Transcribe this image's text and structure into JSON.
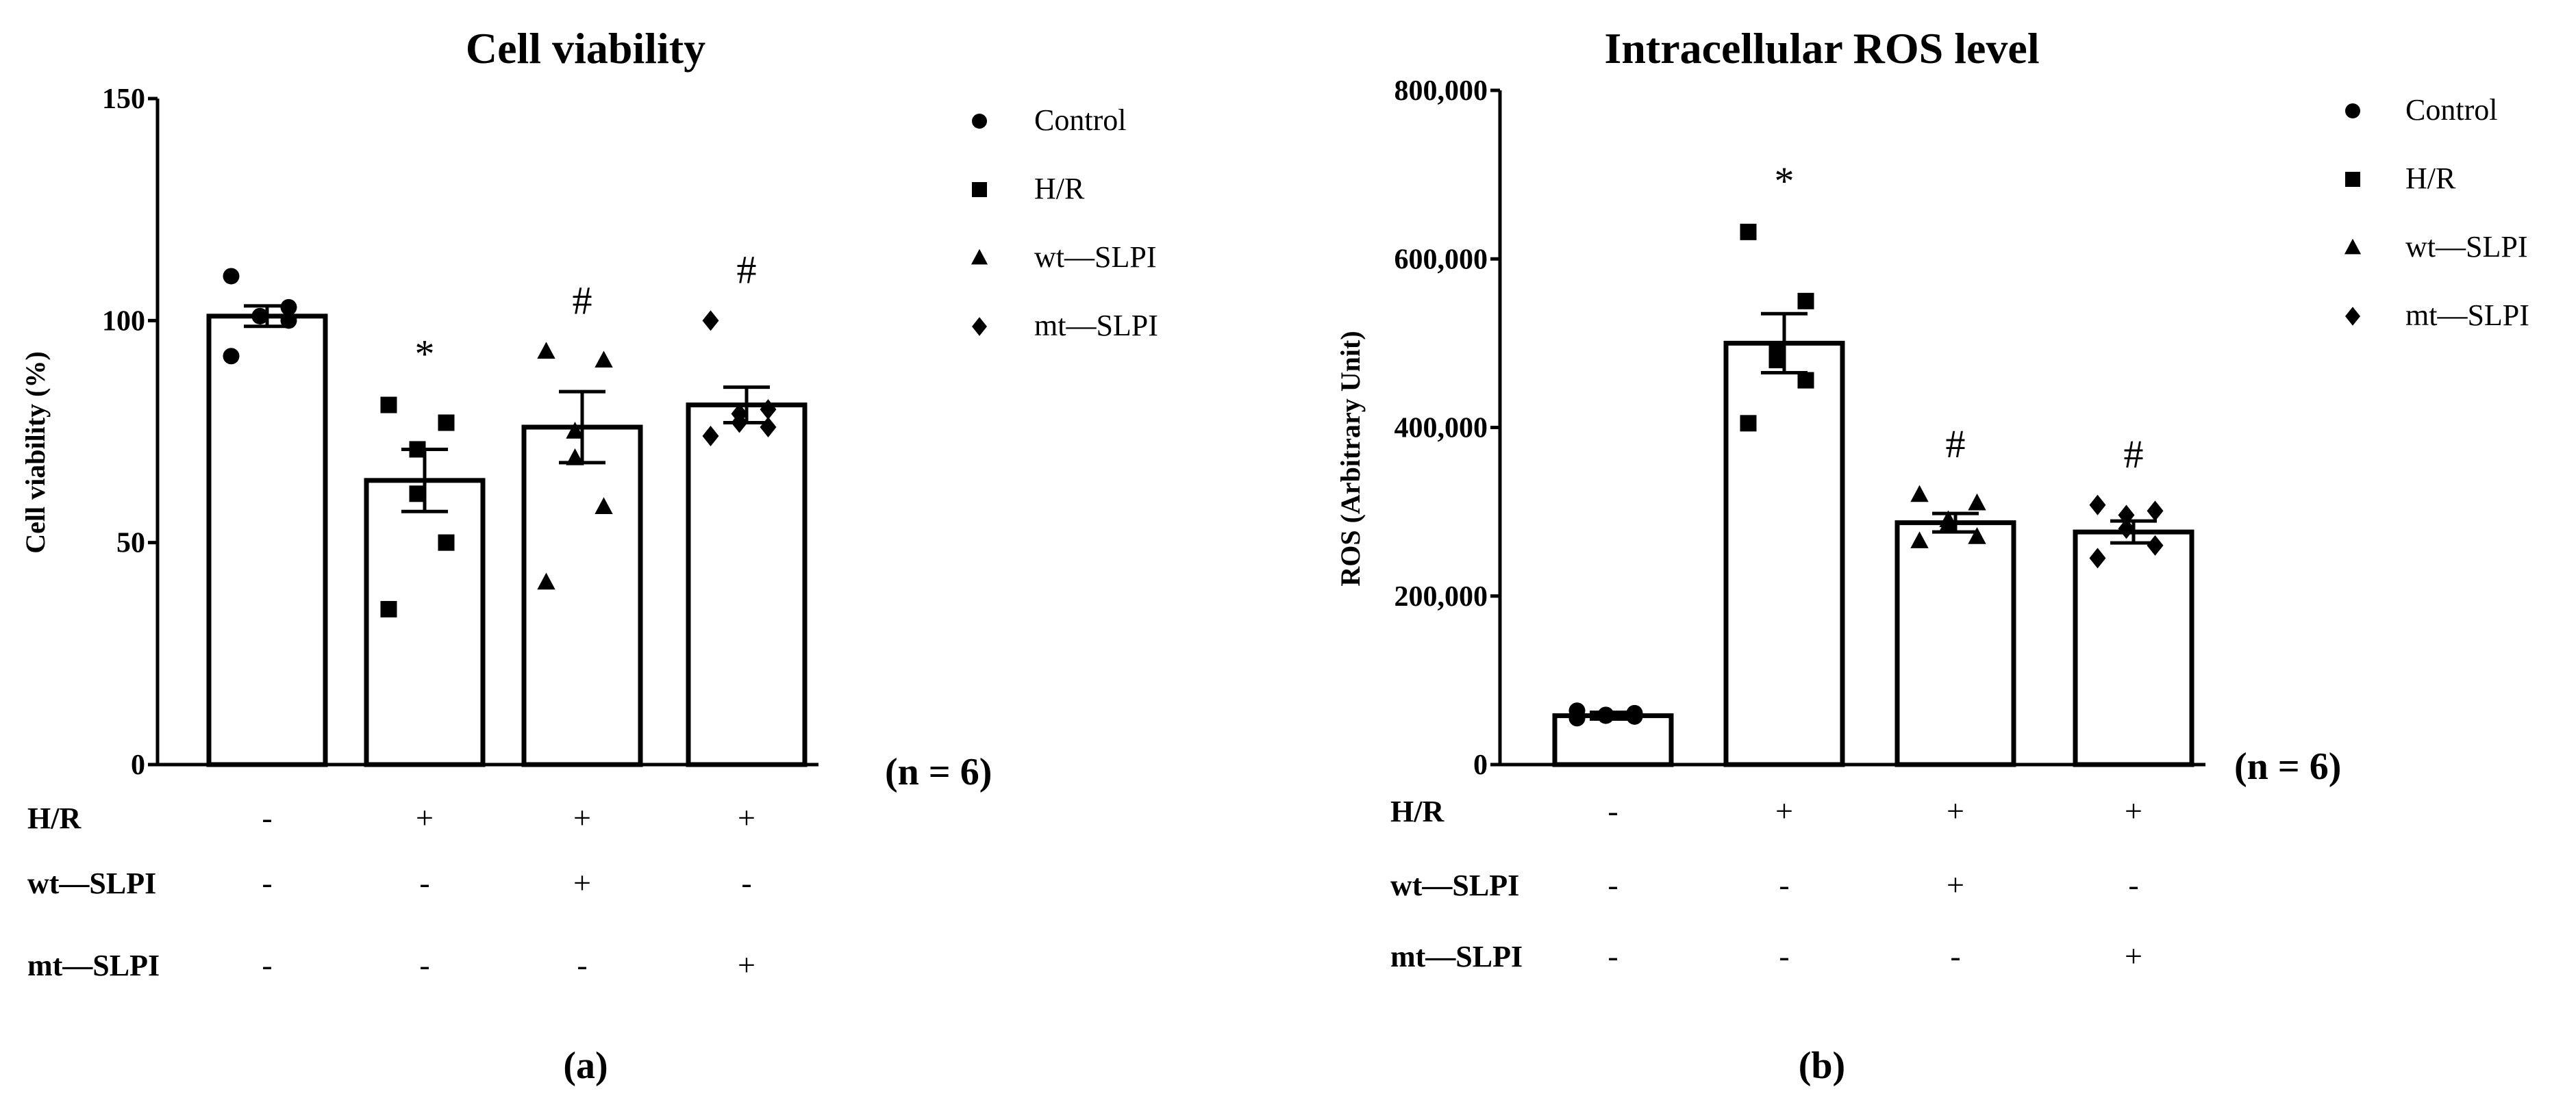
{
  "chart_data": [
    {
      "type": "bar",
      "panel_label": "(a)",
      "title": "Cell viability",
      "ylabel": "Cell viability (%)",
      "xlabel": "",
      "ylim": [
        0,
        150
      ],
      "yticks": [
        0,
        50,
        100,
        150
      ],
      "ytick_labels": [
        "0",
        "50",
        "100",
        "150"
      ],
      "grid": false,
      "categories": [
        "Control",
        "H/R",
        "wt—SLPI",
        "mt—SLPI"
      ],
      "markers": [
        "circle",
        "square",
        "triangle",
        "diamond"
      ],
      "values": [
        101,
        64,
        76,
        81
      ],
      "sem": [
        2.3,
        7,
        8,
        4
      ],
      "points": [
        [
          110,
          103,
          101,
          101,
          100,
          92
        ],
        [
          81,
          77,
          71,
          61,
          50,
          35
        ],
        [
          93,
          91,
          75,
          69,
          58,
          41
        ],
        [
          100,
          80,
          79,
          77,
          76,
          74
        ]
      ],
      "annotations": [
        "",
        "*",
        "#",
        "#"
      ],
      "legend": [
        "Control",
        "H/R",
        "wt—SLPI",
        "mt—SLPI"
      ],
      "legend_position": "right",
      "n_label": "(n = 6)",
      "conditions": [
        {
          "label": "H/R",
          "marks": [
            "-",
            "+",
            "+",
            "+"
          ]
        },
        {
          "label": "wt—SLPI",
          "marks": [
            "-",
            "-",
            "+",
            "-"
          ]
        },
        {
          "label": "mt—SLPI",
          "marks": [
            "-",
            "-",
            "-",
            "+"
          ]
        }
      ]
    },
    {
      "type": "bar",
      "panel_label": "(b)",
      "title": "Intracellular ROS level",
      "ylabel": "ROS (Arbitrary Unit)",
      "xlabel": "",
      "ylim": [
        0,
        800000
      ],
      "yticks": [
        0,
        200000,
        400000,
        600000,
        800000
      ],
      "ytick_labels": [
        "0",
        "200,000",
        "400,000",
        "600,000",
        "800,000"
      ],
      "grid": false,
      "categories": [
        "Control",
        "H/R",
        "wt—SLPI",
        "mt—SLPI"
      ],
      "markers": [
        "circle",
        "square",
        "triangle",
        "diamond"
      ],
      "values": [
        58000,
        500000,
        287000,
        276000
      ],
      "sem": [
        4000,
        35000,
        11000,
        13000
      ],
      "points": [
        [
          64000,
          61000,
          59000,
          58000,
          57000,
          55000
        ],
        [
          632000,
          550000,
          490000,
          480000,
          456000,
          405000
        ],
        [
          320000,
          310000,
          290000,
          285000,
          270000,
          265000
        ],
        [
          308000,
          301000,
          296000,
          280000,
          260000,
          245000
        ]
      ],
      "annotations": [
        "",
        "*",
        "#",
        "#"
      ],
      "legend": [
        "Control",
        "H/R",
        "wt—SLPI",
        "mt—SLPI"
      ],
      "legend_position": "right",
      "n_label": "(n = 6)",
      "conditions": [
        {
          "label": "H/R",
          "marks": [
            "-",
            "+",
            "+",
            "+"
          ]
        },
        {
          "label": "wt—SLPI",
          "marks": [
            "-",
            "-",
            "+",
            "-"
          ]
        },
        {
          "label": "mt—SLPI",
          "marks": [
            "-",
            "-",
            "-",
            "+"
          ]
        }
      ]
    }
  ]
}
